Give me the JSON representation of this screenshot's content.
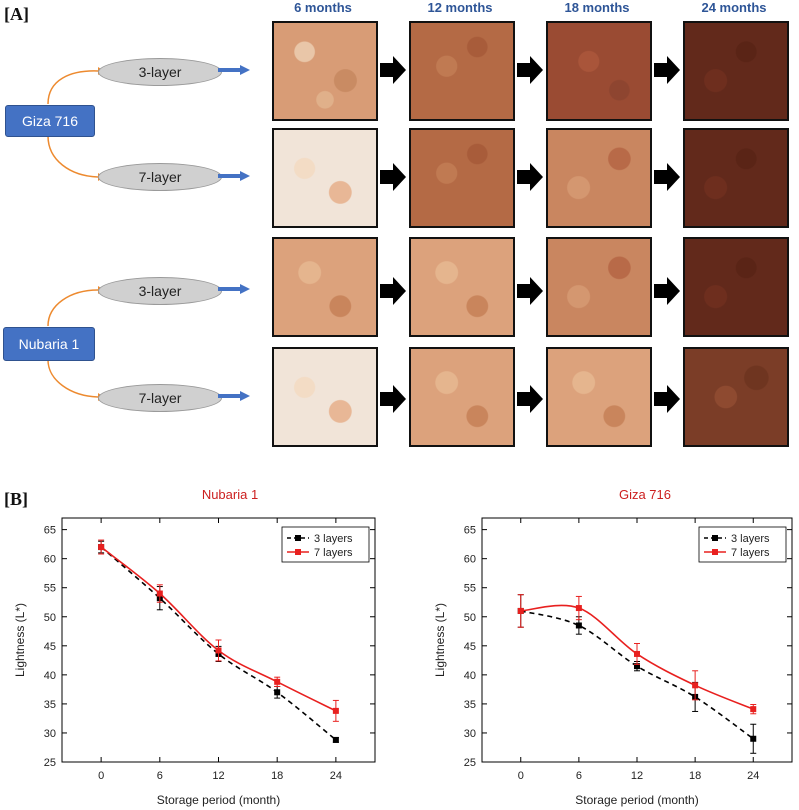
{
  "panelA": {
    "label": "[A]",
    "months": [
      "6 months",
      "12 months",
      "18 months",
      "24 months"
    ],
    "varieties": [
      {
        "name": "Giza 716",
        "layers": [
          "3-layer",
          "7-layer"
        ]
      },
      {
        "name": "Nubaria 1",
        "layers": [
          "3-layer",
          "7-layer"
        ]
      }
    ]
  },
  "panelB": {
    "label": "[B]"
  },
  "colors": {
    "series_3": "#000000",
    "series_7": "#e8201f",
    "title": "#cc1f1f",
    "header": "#2e5597",
    "variety_box": "#4472c4"
  },
  "chart_data": [
    {
      "type": "line",
      "title": "Nubaria 1",
      "xlabel": "Storage period (month)",
      "ylabel": "Lightness (L*)",
      "x": [
        0,
        6,
        12,
        18,
        24
      ],
      "xlim": [
        -4,
        28
      ],
      "ylim": [
        25,
        67
      ],
      "yticks": [
        25,
        30,
        35,
        40,
        45,
        50,
        55,
        60,
        65
      ],
      "series": [
        {
          "name": "3 layers",
          "style": "dashed",
          "values": [
            62.0,
            53.2,
            43.6,
            37.0,
            28.8
          ],
          "errors": [
            1.0,
            2.0,
            1.3,
            1.0,
            0.4
          ]
        },
        {
          "name": "7 layers",
          "style": "solid",
          "values": [
            62.0,
            54.0,
            44.2,
            38.8,
            33.8
          ],
          "errors": [
            1.2,
            1.5,
            1.8,
            0.8,
            1.8
          ]
        }
      ],
      "legend": "top-right"
    },
    {
      "type": "line",
      "title": "Giza 716",
      "xlabel": "Storage period (month)",
      "ylabel": "Lightness (L*)",
      "x": [
        0,
        6,
        12,
        18,
        24
      ],
      "xlim": [
        -4,
        28
      ],
      "ylim": [
        25,
        67
      ],
      "yticks": [
        25,
        30,
        35,
        40,
        45,
        50,
        55,
        60,
        65
      ],
      "series": [
        {
          "name": "3 layers",
          "style": "dashed",
          "values": [
            51.0,
            48.5,
            41.5,
            36.2,
            29.0
          ],
          "errors": [
            2.8,
            1.5,
            0.8,
            2.5,
            2.5
          ]
        },
        {
          "name": "7 layers",
          "style": "solid",
          "values": [
            51.0,
            51.5,
            43.6,
            38.2,
            34.1
          ],
          "errors": [
            2.8,
            2.0,
            1.8,
            2.5,
            0.8
          ]
        }
      ],
      "legend": "top-right"
    }
  ]
}
